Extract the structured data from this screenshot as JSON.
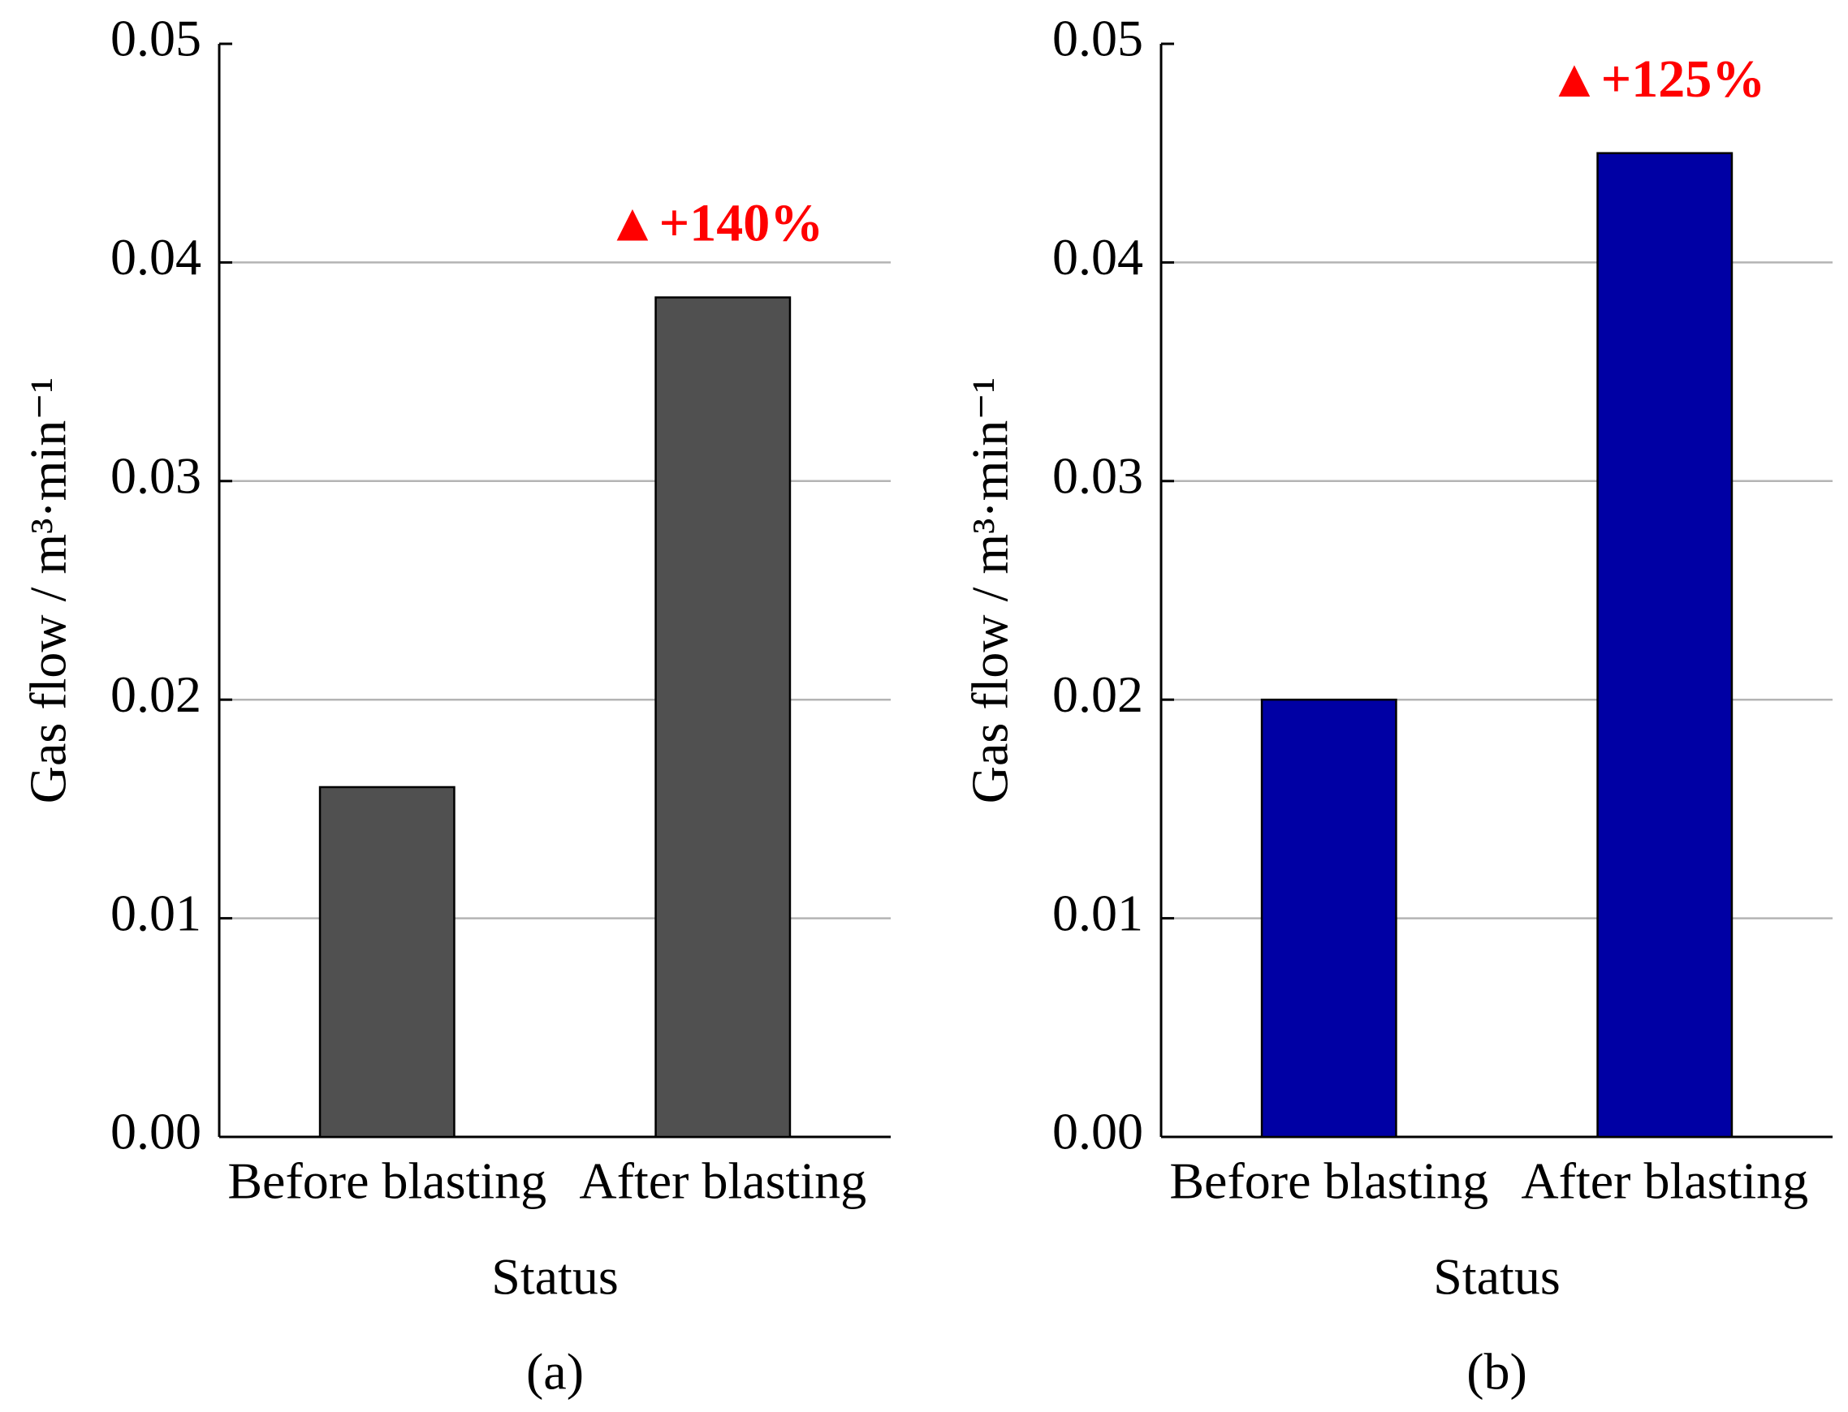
{
  "chart_data": [
    {
      "type": "bar",
      "caption": "(a)",
      "xlabel": "Status",
      "ylabel": "Gas flow / m³·min⁻¹",
      "categories": [
        "Before blasting",
        "After blasting"
      ],
      "values": [
        0.016,
        0.0384
      ],
      "color": "#505050",
      "annotation": "▲+140%",
      "annotation_color": "#ff0000",
      "ylim": [
        0,
        0.05
      ],
      "yticks": [
        {
          "value": 0,
          "label": "0.00"
        },
        0.01,
        0.02,
        0.03,
        0.04,
        0.05
      ],
      "grid": true
    },
    {
      "type": "bar",
      "caption": "(b)",
      "xlabel": "Status",
      "ylabel": "Gas flow / m³·min⁻¹",
      "categories": [
        "Before blasting",
        "After blasting"
      ],
      "values": [
        0.02,
        0.045
      ],
      "color": "#0000a4",
      "annotation": "▲+125%",
      "annotation_color": "#ff0000",
      "ylim": [
        0,
        0.05
      ],
      "yticks": [
        {
          "value": 0,
          "label": "0.00"
        },
        0.01,
        0.02,
        0.03,
        0.04,
        0.05
      ],
      "grid": true
    }
  ]
}
